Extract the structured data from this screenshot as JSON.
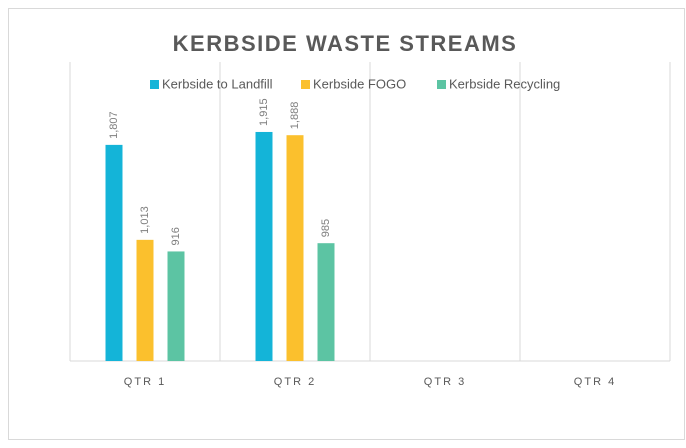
{
  "chart_data": {
    "type": "bar",
    "title": "KERBSIDE WASTE STREAMS",
    "categories": [
      "QTR 1",
      "QTR 2",
      "QTR 3",
      "QTR 4"
    ],
    "series": [
      {
        "name": "Kerbside to Landfill",
        "color": "#14b4d8",
        "values": [
          1807,
          1915,
          null,
          null
        ],
        "value_labels": [
          "1,807",
          "1,915",
          null,
          null
        ]
      },
      {
        "name": "Kerbside FOGO",
        "color": "#fbc02d",
        "values": [
          1013,
          1888,
          null,
          null
        ],
        "value_labels": [
          "1,013",
          "1,888",
          null,
          null
        ]
      },
      {
        "name": "Kerbside Recycling",
        "color": "#5cc4a3",
        "values": [
          916,
          985,
          null,
          null
        ],
        "value_labels": [
          "916",
          "985",
          null,
          null
        ]
      }
    ],
    "ylim": [
      0,
      2500
    ],
    "legend": "top"
  }
}
